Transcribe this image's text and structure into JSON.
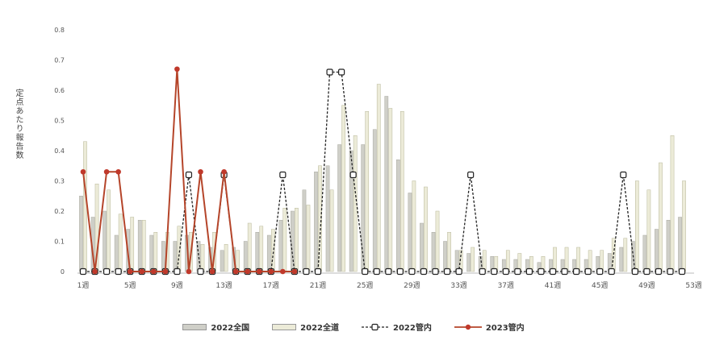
{
  "chart_data": {
    "type": "bar",
    "ylabel": "定点あたり報告数",
    "ylim": [
      0,
      0.8
    ],
    "y_ticks": [
      "0",
      "0.1",
      "0.2",
      "0.3",
      "0.4",
      "0.5",
      "0.6",
      "0.7",
      "0.8"
    ],
    "x_tick_labels": [
      "1週",
      "5週",
      "9週",
      "13週",
      "17週",
      "21週",
      "25週",
      "29週",
      "33週",
      "37週",
      "41週",
      "45週",
      "49週",
      "53週"
    ],
    "x_tick_weeks": [
      1,
      5,
      9,
      13,
      17,
      21,
      25,
      29,
      33,
      37,
      41,
      45,
      49,
      53
    ],
    "weeks": [
      1,
      2,
      3,
      4,
      5,
      6,
      7,
      8,
      9,
      10,
      11,
      12,
      13,
      14,
      15,
      16,
      17,
      18,
      19,
      20,
      21,
      22,
      23,
      24,
      25,
      26,
      27,
      28,
      29,
      30,
      31,
      32,
      33,
      34,
      35,
      36,
      37,
      38,
      39,
      40,
      41,
      42,
      43,
      44,
      45,
      46,
      47,
      48,
      49,
      50,
      51,
      52
    ],
    "series": [
      {
        "name": "2022全国",
        "kind": "bar",
        "color": "#cfcfc8",
        "values": [
          0.25,
          0.18,
          0.2,
          0.12,
          0.14,
          0.17,
          0.12,
          0.1,
          0.1,
          0.12,
          0.1,
          0.08,
          0.07,
          0.08,
          0.1,
          0.13,
          0.12,
          0.17,
          0.2,
          0.27,
          0.33,
          0.35,
          0.42,
          0.4,
          0.42,
          0.47,
          0.58,
          0.37,
          0.26,
          0.16,
          0.13,
          0.1,
          0.07,
          0.06,
          0.05,
          0.05,
          0.04,
          0.04,
          0.04,
          0.03,
          0.04,
          0.04,
          0.04,
          0.04,
          0.05,
          0.06,
          0.08,
          0.1,
          0.12,
          0.14,
          0.17,
          0.18
        ]
      },
      {
        "name": "2022全道",
        "kind": "bar",
        "color": "#ecebd8",
        "values": [
          0.43,
          0.29,
          0.27,
          0.19,
          0.18,
          0.17,
          0.13,
          0.13,
          0.15,
          0.13,
          0.09,
          0.13,
          0.09,
          0.07,
          0.16,
          0.15,
          0.14,
          0.21,
          0.21,
          0.22,
          0.35,
          0.27,
          0.55,
          0.45,
          0.53,
          0.62,
          0.54,
          0.53,
          0.3,
          0.28,
          0.2,
          0.13,
          0.07,
          0.08,
          0.07,
          0.05,
          0.07,
          0.06,
          0.05,
          0.05,
          0.08,
          0.08,
          0.08,
          0.07,
          0.07,
          0.11,
          0.11,
          0.3,
          0.27,
          0.36,
          0.45,
          0.3
        ]
      },
      {
        "name": "2022管内",
        "kind": "line",
        "color": "#222222",
        "dashed": true,
        "values": [
          0,
          0,
          0,
          0,
          0,
          0,
          0,
          0,
          0,
          0.32,
          0,
          0,
          0.32,
          0,
          0,
          0,
          0,
          0.32,
          0,
          0,
          0,
          0.66,
          0.66,
          0.32,
          0,
          0,
          0,
          0,
          0,
          0,
          0,
          0,
          0,
          0.32,
          0,
          0,
          0,
          0,
          0,
          0,
          0,
          0,
          0,
          0,
          0,
          0,
          0.32,
          0,
          0,
          0,
          0,
          0
        ]
      },
      {
        "name": "2023管内",
        "kind": "line",
        "color": "#b5452a",
        "values": [
          0.33,
          0,
          0.33,
          0.33,
          0,
          0,
          0,
          0,
          0.67,
          0,
          0.33,
          0,
          0.33,
          0,
          0,
          0,
          0,
          0,
          0
        ]
      }
    ],
    "grid": false,
    "legend_position": "bottom"
  }
}
